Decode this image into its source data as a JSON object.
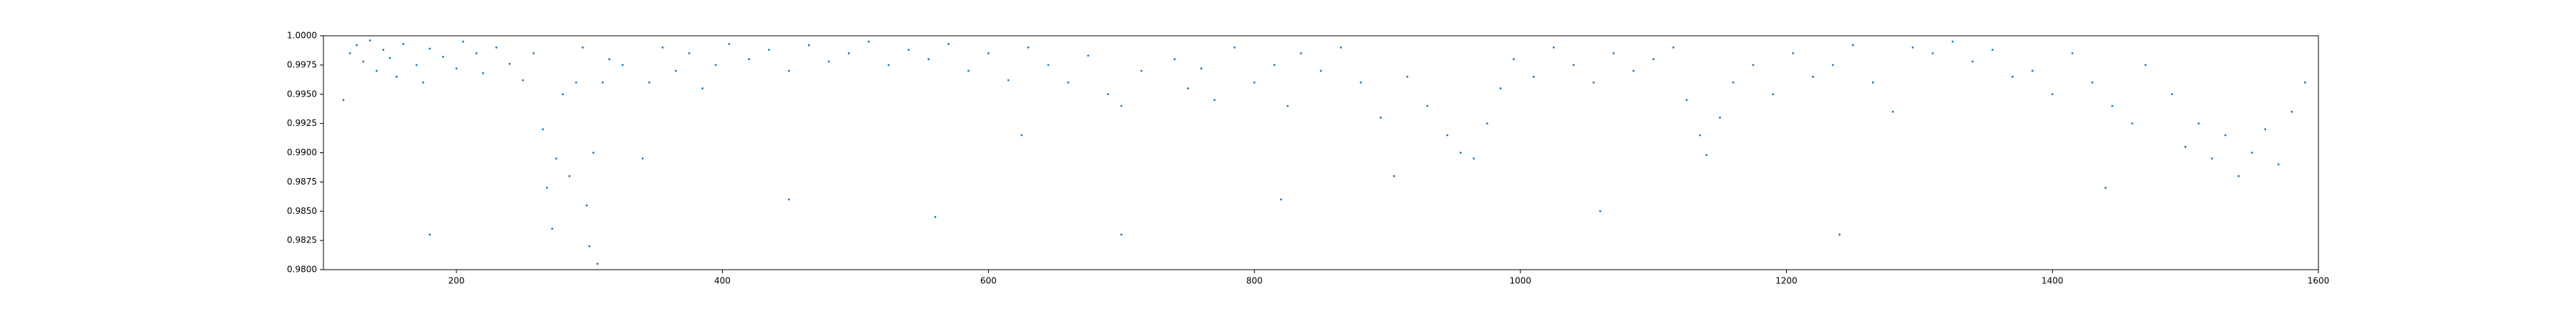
{
  "chart_data": {
    "type": "scatter",
    "color": "#1f77b4",
    "xlim": [
      100,
      1600
    ],
    "xticks": [
      200,
      400,
      600,
      800,
      1000,
      1200,
      1400,
      1600
    ],
    "ylim": [
      0.98,
      1.0
    ],
    "yticks": [
      {
        "value": 0.98,
        "label": "0.9800"
      },
      {
        "value": 0.9825,
        "label": "0.9825"
      },
      {
        "value": 0.985,
        "label": "0.9850"
      },
      {
        "value": 0.9875,
        "label": "0.9875"
      },
      {
        "value": 0.99,
        "label": "0.9900"
      },
      {
        "value": 0.9925,
        "label": "0.9925"
      },
      {
        "value": 0.995,
        "label": "0.9950"
      },
      {
        "value": 0.9975,
        "label": "0.9975"
      },
      {
        "value": 1.0,
        "label": "1.0000"
      }
    ],
    "x": [
      115,
      120,
      125,
      130,
      135,
      140,
      145,
      150,
      155,
      160,
      170,
      175,
      180,
      190,
      200,
      205,
      215,
      220,
      230,
      240,
      250,
      258,
      265,
      268,
      272,
      275,
      280,
      285,
      290,
      295,
      298,
      300,
      303,
      306,
      310,
      315,
      325,
      340,
      345,
      355,
      365,
      375,
      385,
      395,
      405,
      420,
      435,
      450,
      465,
      480,
      495,
      510,
      525,
      540,
      555,
      570,
      585,
      600,
      615,
      625,
      630,
      645,
      660,
      675,
      690,
      700,
      715,
      740,
      750,
      760,
      770,
      785,
      800,
      815,
      825,
      835,
      850,
      865,
      880,
      895,
      905,
      915,
      930,
      945,
      955,
      965,
      975,
      985,
      995,
      1010,
      1025,
      1040,
      1055,
      1070,
      1085,
      1100,
      1115,
      1125,
      1135,
      1140,
      1150,
      1160,
      1175,
      1190,
      1205,
      1220,
      1235,
      1250,
      1265,
      1280,
      1295,
      1310,
      1325,
      1340,
      1355,
      1370,
      1385,
      1400,
      1415,
      1430,
      1445,
      1460,
      1470,
      1490,
      1500,
      1510,
      1520,
      1530,
      1540,
      1550,
      1560,
      1570,
      1580,
      1590,
      180,
      450,
      560,
      700,
      820,
      1060,
      1240,
      1440
    ],
    "values": [
      0.9945,
      0.9985,
      0.9992,
      0.9978,
      0.9996,
      0.997,
      0.9988,
      0.9981,
      0.9965,
      0.9993,
      0.9975,
      0.996,
      0.9989,
      0.9982,
      0.9972,
      0.9995,
      0.9985,
      0.9968,
      0.999,
      0.9976,
      0.9962,
      0.9985,
      0.992,
      0.987,
      0.9835,
      0.9895,
      0.995,
      0.988,
      0.996,
      0.999,
      0.9855,
      0.982,
      0.99,
      0.9805,
      0.996,
      0.998,
      0.9975,
      0.9895,
      0.996,
      0.999,
      0.997,
      0.9985,
      0.9955,
      0.9975,
      0.9993,
      0.998,
      0.9988,
      0.997,
      0.9992,
      0.9978,
      0.9985,
      0.9995,
      0.9975,
      0.9988,
      0.998,
      0.9993,
      0.997,
      0.9985,
      0.9962,
      0.9915,
      0.999,
      0.9975,
      0.996,
      0.9983,
      0.995,
      0.994,
      0.997,
      0.998,
      0.9955,
      0.9972,
      0.9945,
      0.999,
      0.996,
      0.9975,
      0.994,
      0.9985,
      0.997,
      0.999,
      0.996,
      0.993,
      0.988,
      0.9965,
      0.994,
      0.9915,
      0.99,
      0.9895,
      0.9925,
      0.9955,
      0.998,
      0.9965,
      0.999,
      0.9975,
      0.996,
      0.9985,
      0.997,
      0.998,
      0.999,
      0.9945,
      0.9915,
      0.9898,
      0.993,
      0.996,
      0.9975,
      0.995,
      0.9985,
      0.9965,
      0.9975,
      0.9992,
      0.996,
      0.9935,
      0.999,
      0.9985,
      0.9995,
      0.9978,
      0.9988,
      0.9965,
      0.997,
      0.995,
      0.9985,
      0.996,
      0.994,
      0.9925,
      0.9975,
      0.995,
      0.9905,
      0.9925,
      0.9895,
      0.9915,
      0.988,
      0.99,
      0.992,
      0.989,
      0.9935,
      0.996,
      0.983,
      0.986,
      0.9845,
      0.983,
      0.986,
      0.985,
      0.983,
      0.987
    ]
  }
}
